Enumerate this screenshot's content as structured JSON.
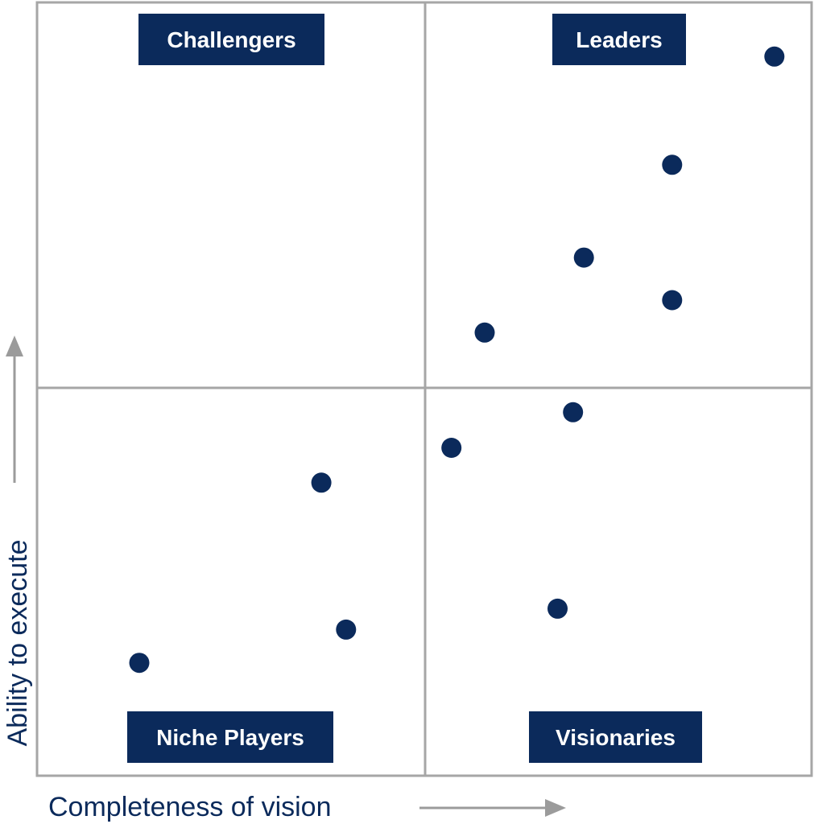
{
  "colors": {
    "navy": "#0b2a5b",
    "grid": "#a6a6a6",
    "arrow": "#9b9b9b",
    "background": "#ffffff"
  },
  "chart_data": {
    "type": "scatter",
    "xlabel": "Completeness of vision",
    "ylabel": "Ability to execute",
    "xlim": [
      0,
      100
    ],
    "ylim": [
      0,
      100
    ],
    "grid": true,
    "quadrants": {
      "top_left": "Challengers",
      "top_right": "Leaders",
      "bottom_left": "Niche Players",
      "bottom_right": "Visionaries"
    },
    "points": [
      {
        "x": 95.2,
        "y": 93.0
      },
      {
        "x": 82.0,
        "y": 79.0
      },
      {
        "x": 70.6,
        "y": 67.0
      },
      {
        "x": 82.0,
        "y": 61.5
      },
      {
        "x": 57.8,
        "y": 57.3
      },
      {
        "x": 69.2,
        "y": 47.0
      },
      {
        "x": 53.5,
        "y": 42.4
      },
      {
        "x": 36.7,
        "y": 37.9
      },
      {
        "x": 67.2,
        "y": 21.6
      },
      {
        "x": 39.9,
        "y": 18.9
      },
      {
        "x": 13.2,
        "y": 14.6
      }
    ]
  }
}
